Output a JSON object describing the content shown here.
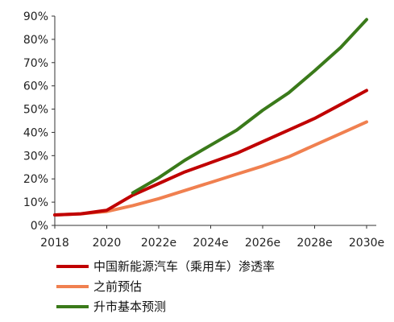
{
  "chart_data": {
    "type": "line",
    "title": "",
    "xlabel": "",
    "ylabel": "",
    "x": [
      "2018",
      "2019",
      "2020",
      "2021",
      "2022e",
      "2023e",
      "2024e",
      "2025e",
      "2026e",
      "2027e",
      "2028e",
      "2029e",
      "2030e"
    ],
    "x_tick_labels": [
      "2018",
      "2020",
      "2022e",
      "2024e",
      "2026e",
      "2028e",
      "2030e"
    ],
    "ylim": [
      0,
      90
    ],
    "y_tick_labels": [
      "0%",
      "10%",
      "20%",
      "30%",
      "40%",
      "50%",
      "60%",
      "70%",
      "80%",
      "90%"
    ],
    "grid": false,
    "legend_position": "bottom",
    "series": [
      {
        "name": "中国新能源汽车（乘用车）渗透率",
        "color": "#c00000",
        "values": [
          4.5,
          5,
          6.5,
          13,
          18,
          23,
          27,
          31,
          36,
          41,
          46,
          52,
          58
        ]
      },
      {
        "name": "之前预估",
        "color": "#f08050",
        "values": [
          4.5,
          5,
          6,
          8.5,
          11.5,
          15,
          18.5,
          22,
          25.5,
          29.5,
          34.5,
          39.5,
          44.5
        ]
      },
      {
        "name": "升市基本预测",
        "color": "#3a7a1a",
        "values": [
          null,
          null,
          null,
          14,
          20.5,
          28,
          34.5,
          41,
          49.5,
          57,
          66.5,
          76.5,
          88.5
        ]
      }
    ]
  }
}
